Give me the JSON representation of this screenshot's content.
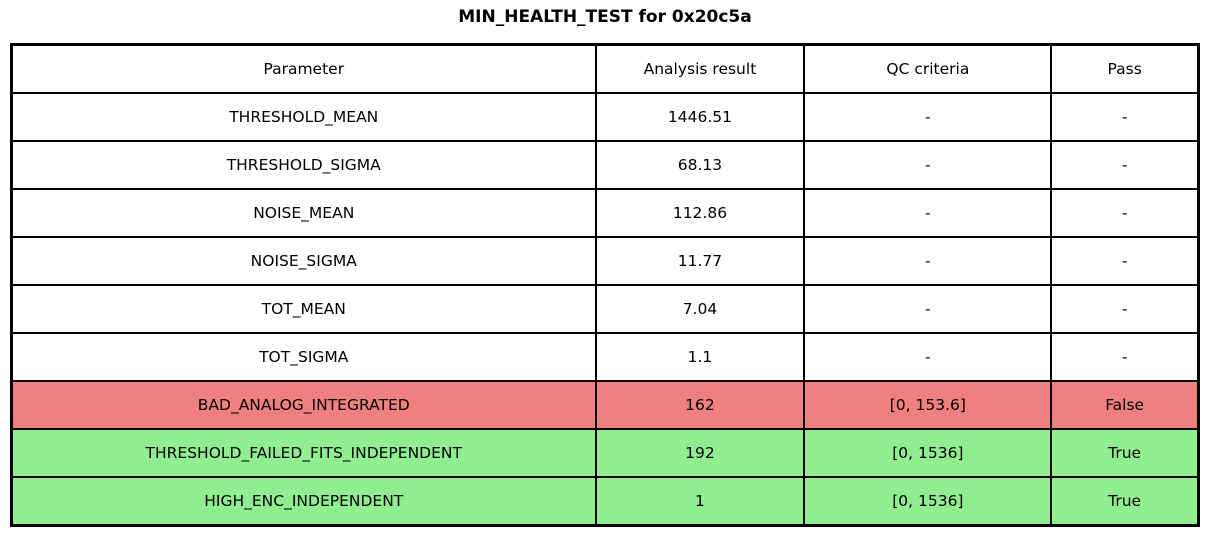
{
  "chart_data": {
    "type": "table",
    "title": "MIN_HEALTH_TEST for 0x20c5a",
    "columns": [
      "Parameter",
      "Analysis result",
      "QC criteria",
      "Pass"
    ],
    "rows": [
      {
        "parameter": "THRESHOLD_MEAN",
        "result": "1446.51",
        "qc": "-",
        "pass": "-",
        "status": "neutral"
      },
      {
        "parameter": "THRESHOLD_SIGMA",
        "result": "68.13",
        "qc": "-",
        "pass": "-",
        "status": "neutral"
      },
      {
        "parameter": "NOISE_MEAN",
        "result": "112.86",
        "qc": "-",
        "pass": "-",
        "status": "neutral"
      },
      {
        "parameter": "NOISE_SIGMA",
        "result": "11.77",
        "qc": "-",
        "pass": "-",
        "status": "neutral"
      },
      {
        "parameter": "TOT_MEAN",
        "result": "7.04",
        "qc": "-",
        "pass": "-",
        "status": "neutral"
      },
      {
        "parameter": "TOT_SIGMA",
        "result": "1.1",
        "qc": "-",
        "pass": "-",
        "status": "neutral"
      },
      {
        "parameter": "BAD_ANALOG_INTEGRATED",
        "result": "162",
        "qc": "[0, 153.6]",
        "pass": "False",
        "status": "fail"
      },
      {
        "parameter": "THRESHOLD_FAILED_FITS_INDEPENDENT",
        "result": "192",
        "qc": "[0, 1536]",
        "pass": "True",
        "status": "pass"
      },
      {
        "parameter": "HIGH_ENC_INDEPENDENT",
        "result": "1",
        "qc": "[0, 1536]",
        "pass": "True",
        "status": "pass"
      }
    ]
  },
  "colors": {
    "fail_row_bg": "#f08080",
    "pass_row_bg": "#90ee90",
    "neutral_row_bg": "#ffffff",
    "border": "#000000",
    "text": "#000000"
  }
}
